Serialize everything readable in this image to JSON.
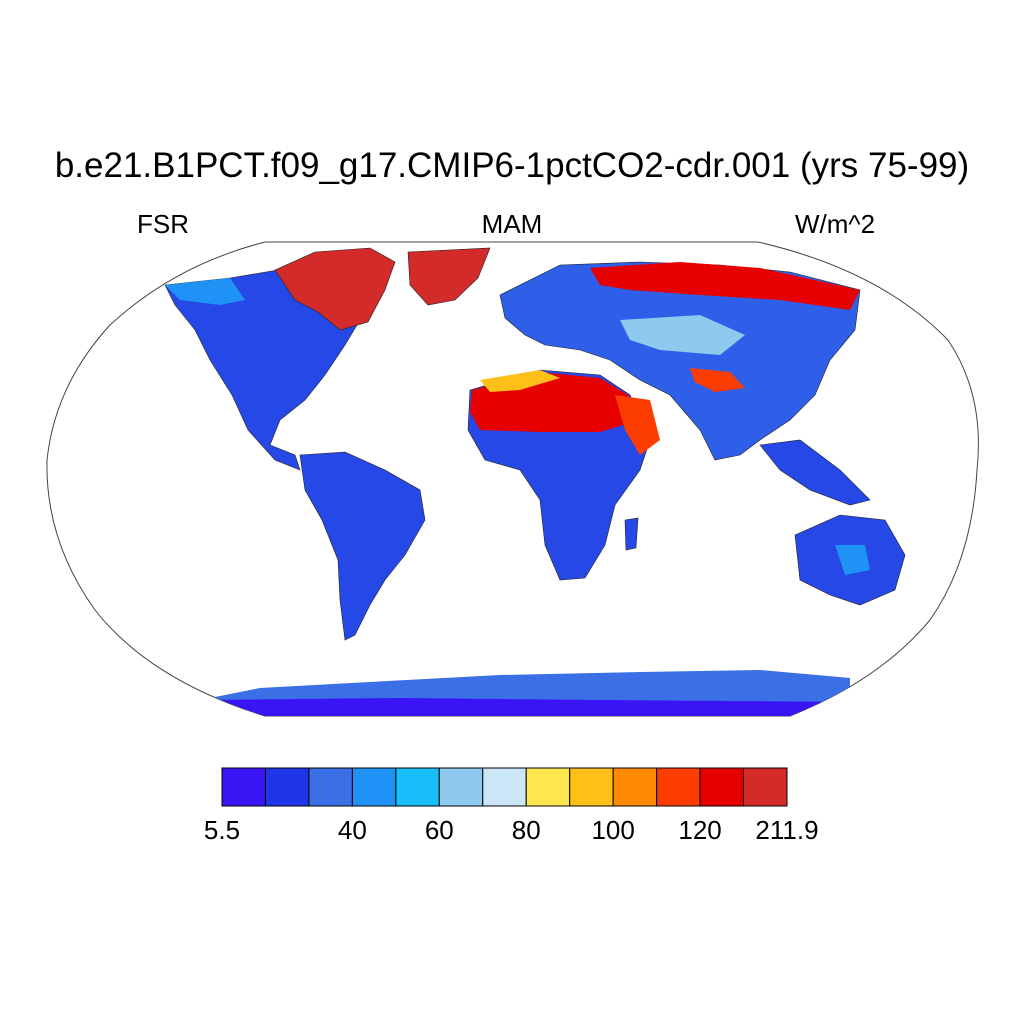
{
  "title": "b.e21.B1PCT.f09_g17.CMIP6-1pctCO2-cdr.001 (yrs 75-99)",
  "left_label": "FSR",
  "center_label": "MAM",
  "right_label": "W/m^2",
  "projection": "robinson",
  "colorbar": {
    "colors": [
      "#3b14f5",
      "#1f36e8",
      "#3a6fe6",
      "#1f93f5",
      "#17bef7",
      "#8ec9ee",
      "#cbe6f7",
      "#fde64f",
      "#fdbf18",
      "#fd8a00",
      "#fd3c00",
      "#e60000",
      "#d32a2a"
    ],
    "tick_labels": [
      "5.5",
      "40",
      "60",
      "80",
      "100",
      "120",
      "211.9"
    ]
  }
}
